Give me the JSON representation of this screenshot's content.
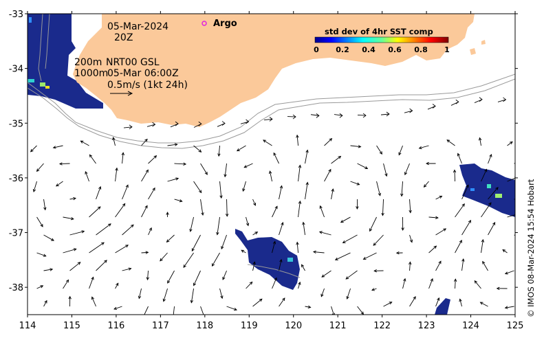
{
  "map": {
    "lon_ticks": [
      "114",
      "115",
      "116",
      "117",
      "118",
      "119",
      "120",
      "121",
      "122",
      "123",
      "124",
      "125"
    ],
    "lat_ticks": [
      "-33",
      "-34",
      "-35",
      "-36",
      "-37",
      "-38"
    ],
    "lon_range": [
      114,
      125
    ],
    "lat_range": [
      -38.5,
      -33
    ]
  },
  "annotations": {
    "date": "05-Mar-2024",
    "time": "20Z",
    "isobath_200": "200m",
    "isobath_1000": "1000m",
    "product": "NRT00 GSL",
    "product_time": "05-Mar 06:00Z",
    "scale_label": "0.5m/s (1kt 24h)",
    "argo_label": "Argo"
  },
  "colorbar": {
    "title": "std dev of 4hr SST comp",
    "ticks": [
      "0",
      "0.2",
      "0.4",
      "0.6",
      "0.8",
      "1"
    ],
    "colormap": "jet"
  },
  "credit": "© IMOS 08-Mar-2024 15:54 Hobart",
  "colors": {
    "land": "#fbc99a",
    "sst_dark": "#1a2a8c",
    "vector": "#000000",
    "isobath": "#999999",
    "argo": "#e020e0"
  }
}
